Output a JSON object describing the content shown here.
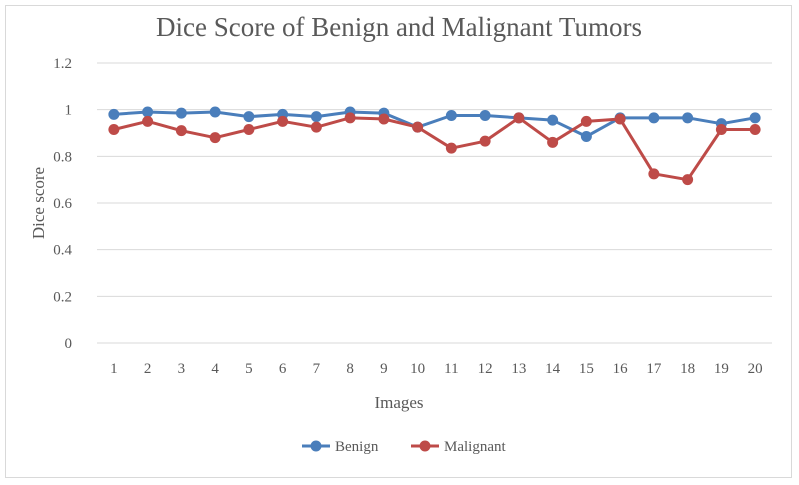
{
  "chart_data": {
    "type": "line",
    "title": "Dice Score of Benign and Malignant Tumors",
    "xlabel": "Images",
    "ylabel": "Dice score",
    "ylim": [
      0,
      1.2
    ],
    "yticks": [
      "0",
      "0.2",
      "0.4",
      "0.6",
      "0.8",
      "1",
      "1.2"
    ],
    "categories": [
      "1",
      "2",
      "3",
      "4",
      "5",
      "6",
      "7",
      "8",
      "9",
      "10",
      "11",
      "12",
      "13",
      "14",
      "15",
      "16",
      "17",
      "18",
      "19",
      "20"
    ],
    "grid": true,
    "legend_position": "bottom",
    "series": [
      {
        "name": "Benign",
        "color": "#4a7ebb",
        "values": [
          0.98,
          0.99,
          0.985,
          0.99,
          0.97,
          0.98,
          0.97,
          0.99,
          0.985,
          0.925,
          0.975,
          0.975,
          0.965,
          0.955,
          0.885,
          0.965,
          0.965,
          0.965,
          0.94,
          0.965
        ]
      },
      {
        "name": "Malignant",
        "color": "#be4b48",
        "values": [
          0.915,
          0.95,
          0.91,
          0.88,
          0.915,
          0.95,
          0.925,
          0.965,
          0.96,
          0.925,
          0.835,
          0.865,
          0.965,
          0.86,
          0.95,
          0.96,
          0.725,
          0.7,
          0.915,
          0.915
        ]
      }
    ]
  }
}
